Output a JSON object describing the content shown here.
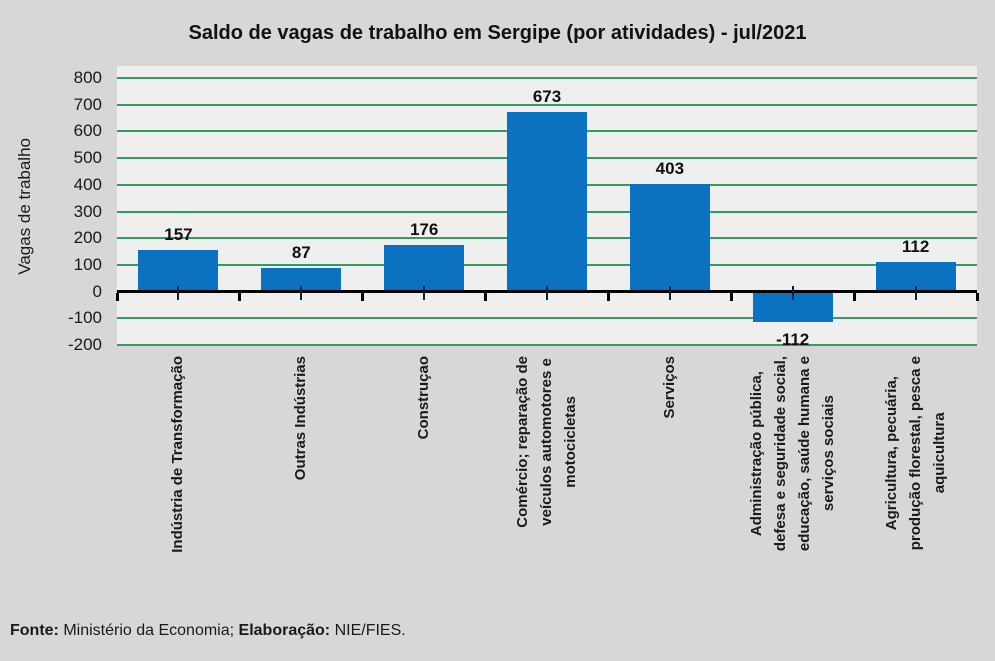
{
  "title": "Saldo de vagas de trabalho em Sergipe (por atividades) - jul/2021",
  "y_axis": {
    "label": "Vagas de trabalho",
    "ticks": [
      800,
      700,
      600,
      500,
      400,
      300,
      200,
      100,
      0,
      -100,
      -200
    ]
  },
  "footer": {
    "fonte_label": "Fonte:",
    "fonte_text": "Ministério da Economia;",
    "elaboracao_label": "Elaboração:",
    "elaboracao_text": "NIE/FIES."
  },
  "chart_data": {
    "type": "bar",
    "title": "Saldo de vagas de trabalho em Sergipe (por atividades) - jul/2021",
    "xlabel": "",
    "ylabel": "Vagas de trabalho",
    "ylim": [
      -200,
      800
    ],
    "ytick_interval": 100,
    "yticks": [
      800,
      700,
      600,
      500,
      400,
      300,
      200,
      100,
      0,
      -100,
      -200
    ],
    "grid": true,
    "legend": false,
    "grid_color": "#2f9e5f",
    "bar_color": "#0b72c1",
    "plot_background": "#efefef",
    "page_background": "#d7d7d7",
    "categories": [
      "Indústria de Transformação",
      "Outras Indústrias",
      "Construçao",
      "Comércio; reparação de veículos automotores e motocicletas",
      "Serviços",
      "Administração pública, defesa e seguridade social, educação, saúde humana e serviços sociais",
      "Agricultura, pecuária, produção florestal, pesca e aquicultura"
    ],
    "categories_wrapped": [
      "Indústria de Transformação",
      "Outras Indústrias",
      "Construçao",
      "Comércio; reparação de\nveículos automotores e\nmotocicletas",
      "Serviços",
      "Administração pública,\ndefesa e seguridade social,\neducação, saúde humana e\nserviços sociais",
      "Agricultura, pecuária,\nprodução florestal, pesca e\naquicultura"
    ],
    "values": [
      157,
      87,
      176,
      673,
      403,
      -112,
      112
    ],
    "data_labels": [
      "157",
      "87",
      "176",
      "673",
      "403",
      "-112",
      "112"
    ]
  }
}
